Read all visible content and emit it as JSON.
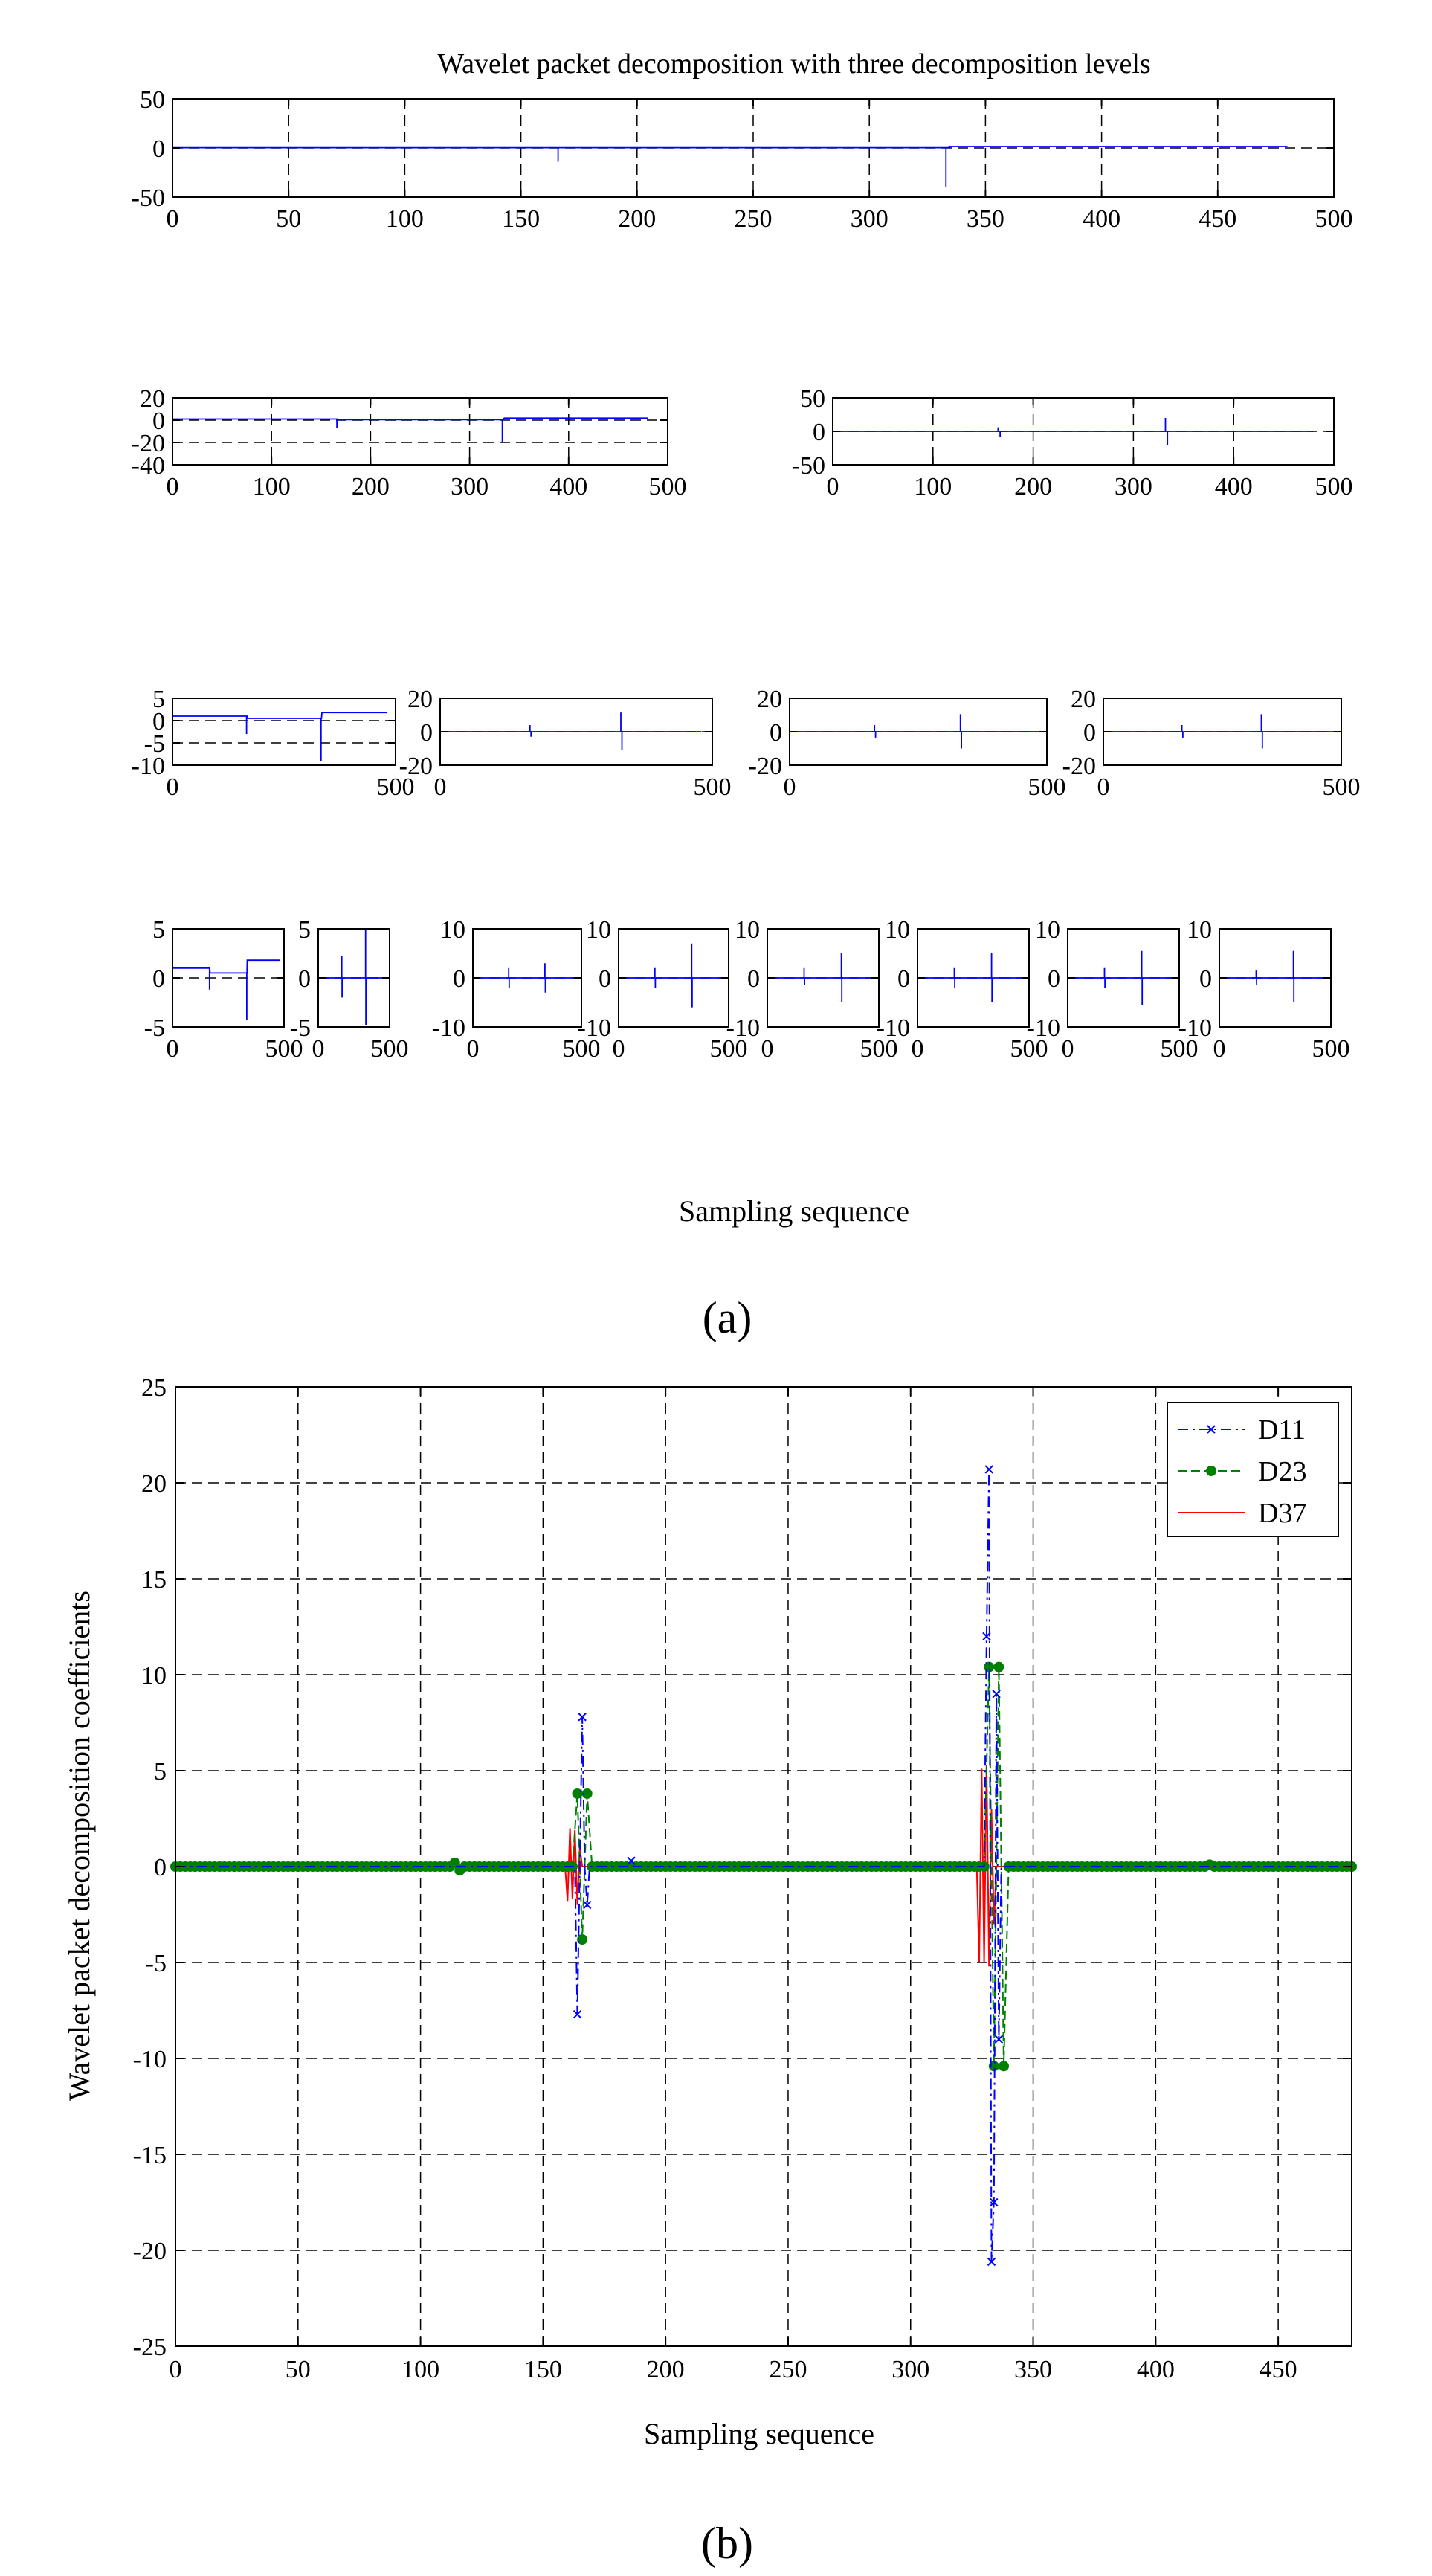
{
  "chart_data": [
    {
      "type": "line",
      "panel": "a",
      "panel_label": "(a)",
      "title": "Wavelet packet decomposition with three decomposition levels",
      "xlabel": "Sampling sequence",
      "series_color": "#0000ff",
      "grid": "dashed",
      "subplots": [
        {
          "name": "level-0",
          "xlim": [
            0,
            500
          ],
          "xticks": [
            0,
            50,
            100,
            150,
            200,
            250,
            300,
            350,
            400,
            450,
            500
          ],
          "ylim": [
            -50,
            50
          ],
          "yticks": [
            -50,
            0,
            50
          ],
          "signal": {
            "kind": "step",
            "levels": [
              [
                0,
                0.3
              ],
              [
                335,
                1.5
              ]
            ],
            "end": 480,
            "spikes": [
              [
                166,
                -14
              ],
              [
                333,
                -40
              ]
            ]
          }
        },
        {
          "name": "level-1-approx",
          "xlim": [
            0,
            500
          ],
          "xticks": [
            0,
            100,
            200,
            300,
            400,
            500
          ],
          "ylim": [
            -40,
            20
          ],
          "yticks": [
            -40,
            -20,
            0,
            20
          ],
          "signal": {
            "kind": "step",
            "levels": [
              [
                0,
                1
              ],
              [
                168,
                0.4
              ],
              [
                335,
                1.8
              ]
            ],
            "end": 480,
            "spikes": [
              [
                166,
                -7
              ],
              [
                333,
                -20
              ]
            ]
          }
        },
        {
          "name": "level-1-detail",
          "xlim": [
            0,
            500
          ],
          "xticks": [
            0,
            100,
            200,
            300,
            400,
            500
          ],
          "ylim": [
            -50,
            50
          ],
          "yticks": [
            -50,
            0,
            50
          ],
          "signal": {
            "kind": "zero",
            "end": 480,
            "spikes": [
              [
                165,
                6
              ],
              [
                167,
                -8
              ],
              [
                332,
                20
              ],
              [
                334,
                -20
              ]
            ]
          }
        },
        {
          "name": "level-2-node-0",
          "xlim": [
            0,
            500
          ],
          "xticks": [
            0,
            500
          ],
          "ylim": [
            -10,
            5
          ],
          "yticks": [
            -10,
            -5,
            0,
            5
          ],
          "signal": {
            "kind": "step",
            "levels": [
              [
                0,
                1
              ],
              [
                168,
                0.5
              ],
              [
                335,
                1.8
              ]
            ],
            "end": 480,
            "spikes": [
              [
                166,
                -3
              ],
              [
                333,
                -9
              ]
            ]
          }
        },
        {
          "name": "level-2-node-1",
          "xlim": [
            0,
            500
          ],
          "xticks": [
            0,
            500
          ],
          "ylim": [
            -20,
            20
          ],
          "yticks": [
            -20,
            0,
            20
          ],
          "signal": {
            "kind": "zero",
            "end": 480,
            "spikes": [
              [
                165,
                4
              ],
              [
                167,
                -3
              ],
              [
                332,
                11.5
              ],
              [
                334,
                -11
              ]
            ]
          }
        },
        {
          "name": "level-2-node-2",
          "xlim": [
            0,
            500
          ],
          "xticks": [
            0,
            500
          ],
          "ylim": [
            -20,
            20
          ],
          "yticks": [
            -20,
            0,
            20
          ],
          "signal": {
            "kind": "zero",
            "end": 480,
            "spikes": [
              [
                165,
                4
              ],
              [
                167,
                -3.5
              ],
              [
                332,
                10.5
              ],
              [
                334,
                -10
              ]
            ]
          }
        },
        {
          "name": "level-2-node-3",
          "xlim": [
            0,
            500
          ],
          "xticks": [
            0,
            500
          ],
          "ylim": [
            -20,
            20
          ],
          "yticks": [
            -20,
            0,
            20
          ],
          "signal": {
            "kind": "zero",
            "end": 480,
            "spikes": [
              [
                165,
                4
              ],
              [
                167,
                -3.5
              ],
              [
                332,
                10.5
              ],
              [
                334,
                -10
              ]
            ]
          }
        },
        {
          "name": "level-3-node-0",
          "xlim": [
            0,
            500
          ],
          "xticks": [
            0,
            500
          ],
          "ylim": [
            -5,
            5
          ],
          "yticks": [
            -5,
            0,
            5
          ],
          "signal": {
            "kind": "step",
            "levels": [
              [
                0,
                1
              ],
              [
                168,
                0.5
              ],
              [
                335,
                1.8
              ]
            ],
            "end": 480,
            "spikes": [
              [
                166,
                -1.2
              ],
              [
                333,
                -4.3
              ]
            ]
          }
        },
        {
          "name": "level-3-node-1",
          "xlim": [
            0,
            500
          ],
          "xticks": [
            0,
            500
          ],
          "ylim": [
            -5,
            5
          ],
          "yticks": [
            -5,
            0,
            5
          ],
          "signal": {
            "kind": "zero",
            "end": 480,
            "spikes": [
              [
                165,
                2.2
              ],
              [
                167,
                -2
              ],
              [
                332,
                4.9
              ],
              [
                334,
                -4.8
              ]
            ]
          }
        },
        {
          "name": "level-3-node-2",
          "xlim": [
            0,
            500
          ],
          "xticks": [
            0,
            500
          ],
          "ylim": [
            -10,
            10
          ],
          "yticks": [
            -10,
            0,
            10
          ],
          "signal": {
            "kind": "zero",
            "end": 480,
            "spikes": [
              [
                165,
                2
              ],
              [
                167,
                -2
              ],
              [
                332,
                3
              ],
              [
                334,
                -3
              ]
            ]
          }
        },
        {
          "name": "level-3-node-3",
          "xlim": [
            0,
            500
          ],
          "xticks": [
            0,
            500
          ],
          "ylim": [
            -10,
            10
          ],
          "yticks": [
            -10,
            0,
            10
          ],
          "signal": {
            "kind": "zero",
            "end": 480,
            "spikes": [
              [
                165,
                2
              ],
              [
                167,
                -2
              ],
              [
                332,
                7
              ],
              [
                334,
                -6
              ]
            ]
          }
        },
        {
          "name": "level-3-node-4",
          "xlim": [
            0,
            500
          ],
          "xticks": [
            0,
            500
          ],
          "ylim": [
            -10,
            10
          ],
          "yticks": [
            -10,
            0,
            10
          ],
          "signal": {
            "kind": "zero",
            "end": 480,
            "spikes": [
              [
                165,
                2
              ],
              [
                167,
                -1.5
              ],
              [
                332,
                5
              ],
              [
                334,
                -5
              ]
            ]
          }
        },
        {
          "name": "level-3-node-5",
          "xlim": [
            0,
            500
          ],
          "xticks": [
            0,
            500
          ],
          "ylim": [
            -10,
            10
          ],
          "yticks": [
            -10,
            0,
            10
          ],
          "signal": {
            "kind": "zero",
            "end": 480,
            "spikes": [
              [
                165,
                2
              ],
              [
                167,
                -2
              ],
              [
                332,
                5
              ],
              [
                334,
                -5
              ]
            ]
          }
        },
        {
          "name": "level-3-node-6",
          "xlim": [
            0,
            500
          ],
          "xticks": [
            0,
            500
          ],
          "ylim": [
            -10,
            10
          ],
          "yticks": [
            -10,
            0,
            10
          ],
          "signal": {
            "kind": "zero",
            "end": 480,
            "spikes": [
              [
                165,
                2
              ],
              [
                167,
                -2
              ],
              [
                332,
                5.5
              ],
              [
                334,
                -5.5
              ]
            ]
          }
        },
        {
          "name": "level-3-node-7",
          "xlim": [
            0,
            500
          ],
          "xticks": [
            0,
            500
          ],
          "ylim": [
            -10,
            10
          ],
          "yticks": [
            -10,
            0,
            10
          ],
          "signal": {
            "kind": "zero",
            "end": 480,
            "spikes": [
              [
                165,
                1.5
              ],
              [
                167,
                -1.5
              ],
              [
                332,
                5.5
              ],
              [
                334,
                -5
              ]
            ]
          }
        }
      ]
    },
    {
      "type": "line",
      "panel": "b",
      "panel_label": "(b)",
      "title": "",
      "xlabel": "Sampling sequence",
      "ylabel": "Wavelet packet decomposition coefficients",
      "xlim": [
        0,
        480
      ],
      "xticks": [
        0,
        50,
        100,
        150,
        200,
        250,
        300,
        350,
        400,
        450
      ],
      "ylim": [
        -25,
        25
      ],
      "yticks": [
        -25,
        -20,
        -15,
        -10,
        -5,
        0,
        5,
        10,
        15,
        20,
        25
      ],
      "grid": "dashed",
      "legend": "top-right",
      "series": [
        {
          "name": "D11",
          "color": "#0000ff",
          "marker": "x",
          "dash": "dashdot",
          "step": 1,
          "end": 480,
          "points": [
            [
              164,
              -7.7
            ],
            [
              166,
              7.8
            ],
            [
              168,
              -2
            ],
            [
              186,
              0.3
            ],
            [
              331,
              12
            ],
            [
              332,
              20.7
            ],
            [
              333,
              -20.6
            ],
            [
              334,
              -17.5
            ],
            [
              335,
              9
            ],
            [
              336,
              -9
            ]
          ]
        },
        {
          "name": "D23",
          "color": "#008000",
          "marker": "o",
          "dash": "dash",
          "step": 2,
          "end": 480,
          "points": [
            [
              114,
              0.2
            ],
            [
              116,
              -0.2
            ],
            [
              164,
              3.8
            ],
            [
              166,
              -3.8
            ],
            [
              168,
              3.8
            ],
            [
              332,
              10.4
            ],
            [
              334,
              -10.4
            ],
            [
              336,
              10.4
            ],
            [
              338,
              -10.4
            ],
            [
              422,
              0.1
            ]
          ]
        },
        {
          "name": "D37",
          "color": "#ff0000",
          "marker": "none",
          "dash": "solid",
          "step": 1,
          "end": 480,
          "points": [
            [
              160,
              -1.8
            ],
            [
              161,
              2
            ],
            [
              162,
              -1.7
            ],
            [
              163,
              1.9
            ],
            [
              164,
              -2
            ],
            [
              165,
              1
            ],
            [
              328,
              -5
            ],
            [
              329,
              5.1
            ],
            [
              330,
              -5
            ],
            [
              331,
              5.3
            ],
            [
              332,
              -5.2
            ],
            [
              333,
              3
            ],
            [
              334,
              -3
            ]
          ]
        }
      ]
    }
  ]
}
